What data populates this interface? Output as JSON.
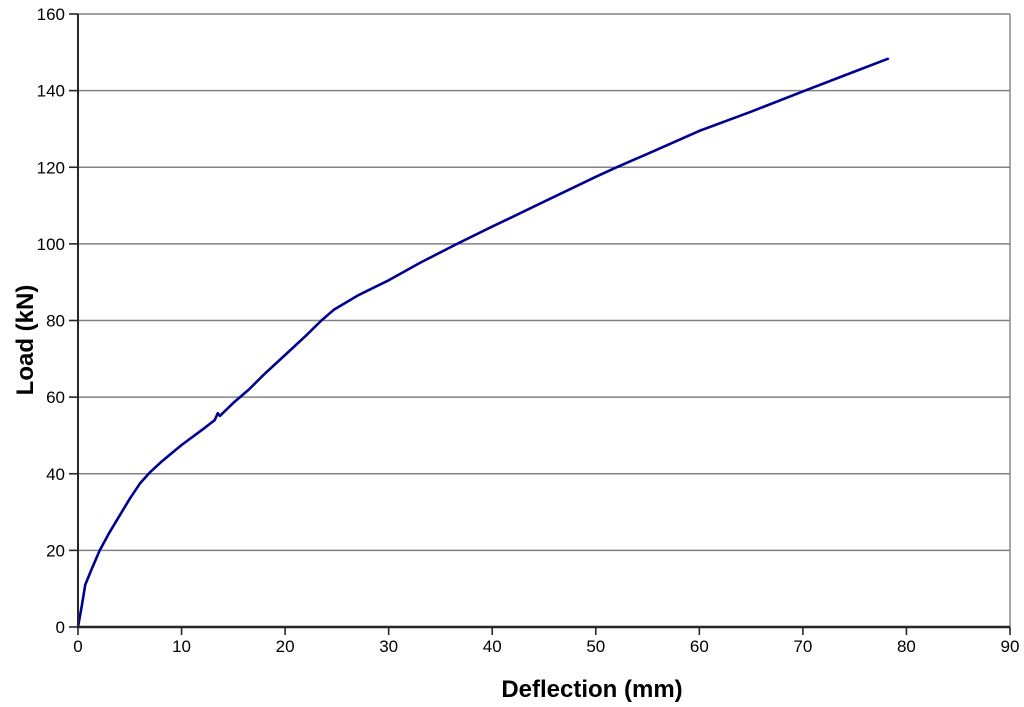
{
  "chart_data": {
    "type": "line",
    "title": "",
    "xlabel": "Deflection (mm)",
    "ylabel": "Load (kN)",
    "xlim": [
      0,
      90
    ],
    "ylim": [
      0,
      160
    ],
    "x_tick_step": 10,
    "y_tick_step": 20,
    "x_tick_labels": [
      "0",
      "10",
      "20",
      "30",
      "40",
      "50",
      "60",
      "70",
      "80",
      "90"
    ],
    "y_tick_labels": [
      "0",
      "20",
      "40",
      "60",
      "80",
      "100",
      "120",
      "140",
      "160"
    ],
    "grid": "horizontal-only",
    "legend": "none",
    "colors": {
      "line": "#000090",
      "grid": "#808080",
      "axis": "#262626",
      "background": "#ffffff"
    },
    "series": [
      {
        "name": "load-deflection-curve",
        "x": [
          0,
          0.4,
          0.7,
          1.3,
          2.1,
          3,
          4,
          5,
          6,
          7,
          8,
          10,
          12,
          13.2,
          13.5,
          13.7,
          15,
          16.5,
          18,
          20,
          22,
          23.5,
          24.7,
          27,
          30,
          33,
          36.6,
          40,
          45,
          50,
          52,
          55,
          60,
          65,
          70,
          75,
          78.2
        ],
        "y": [
          0,
          6,
          11,
          15,
          20,
          24.5,
          29,
          33.5,
          37.5,
          40.5,
          43,
          47.5,
          51.5,
          54,
          55.8,
          55.1,
          58.5,
          62,
          66,
          71,
          76,
          80,
          82.8,
          86.5,
          90.5,
          95,
          100,
          104.5,
          111,
          117.5,
          120,
          123.5,
          129.5,
          134.5,
          139.8,
          145,
          148.3
        ]
      }
    ]
  }
}
